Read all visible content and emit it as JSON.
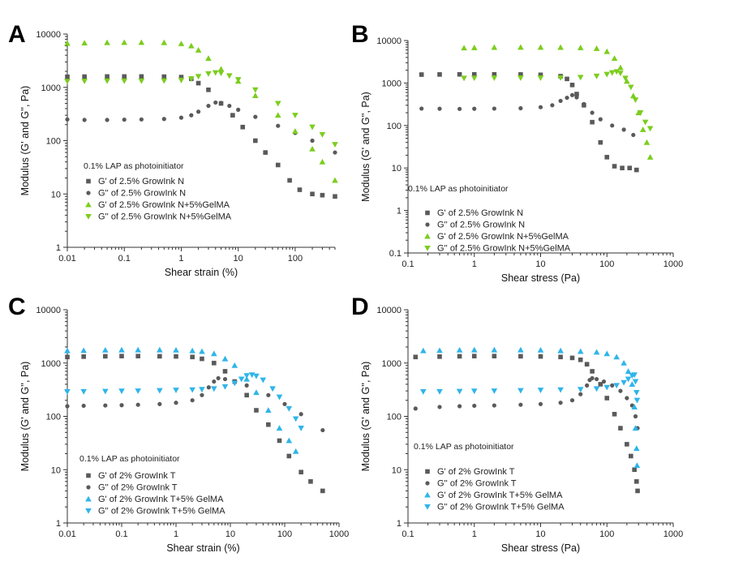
{
  "chart_data": [
    {
      "panel": "A",
      "type": "scatter",
      "xscale": "log",
      "yscale": "log",
      "xlim": [
        0.01,
        500
      ],
      "ylim": [
        1,
        10000
      ],
      "xticks": [
        "0.01",
        "0.1",
        "1",
        "10",
        "100"
      ],
      "yticks": [
        "1",
        "10",
        "100",
        "1000",
        "10000"
      ],
      "xlabel": "Shear strain (%)",
      "ylabel": "Modulus (G' and G'', Pa)",
      "annotation": "0.1% LAP as photoinitiator",
      "series": [
        {
          "name": "G' of 2.5% GrowInk N",
          "marker": "square",
          "color": "#5a5a5a",
          "x": [
            0.01,
            0.02,
            0.05,
            0.1,
            0.2,
            0.5,
            1,
            1.5,
            2,
            3,
            5,
            8,
            12,
            20,
            30,
            50,
            80,
            120,
            200,
            300,
            500
          ],
          "y": [
            1580,
            1590,
            1600,
            1600,
            1600,
            1590,
            1560,
            1450,
            1200,
            900,
            500,
            300,
            180,
            100,
            60,
            35,
            18,
            12,
            10,
            9.5,
            9
          ]
        },
        {
          "name": "G'' of 2.5% GrowInk N",
          "marker": "circle",
          "color": "#5a5a5a",
          "x": [
            0.01,
            0.02,
            0.05,
            0.1,
            0.2,
            0.5,
            1,
            1.5,
            2,
            3,
            4,
            5,
            7,
            10,
            20,
            50,
            100,
            200,
            500
          ],
          "y": [
            250,
            245,
            245,
            248,
            250,
            255,
            270,
            300,
            350,
            450,
            520,
            510,
            450,
            380,
            280,
            190,
            140,
            100,
            60
          ]
        },
        {
          "name": "G' of 2.5% GrowInk N+5%GelMA",
          "marker": "triangle-up",
          "color": "#7ccd1e",
          "x": [
            0.01,
            0.02,
            0.05,
            0.1,
            0.2,
            0.5,
            1,
            1.5,
            2,
            3,
            5,
            10,
            20,
            50,
            100,
            200,
            300,
            500
          ],
          "y": [
            6700,
            6800,
            6900,
            6950,
            6950,
            6900,
            6600,
            6000,
            5000,
            3500,
            2200,
            1300,
            700,
            300,
            150,
            70,
            40,
            18
          ]
        },
        {
          "name": "G'' of 2.5% GrowInk N+5%GelMA",
          "marker": "triangle-down",
          "color": "#7ccd1e",
          "x": [
            0.01,
            0.02,
            0.05,
            0.1,
            0.2,
            0.5,
            1,
            1.5,
            2,
            3,
            4,
            5,
            7,
            10,
            20,
            50,
            100,
            200,
            300,
            500
          ],
          "y": [
            1300,
            1310,
            1320,
            1320,
            1320,
            1330,
            1360,
            1450,
            1600,
            1800,
            1880,
            1850,
            1650,
            1400,
            900,
            500,
            300,
            180,
            130,
            85
          ]
        }
      ]
    },
    {
      "panel": "B",
      "type": "scatter",
      "xscale": "log",
      "yscale": "log",
      "xlim": [
        0.1,
        1000
      ],
      "ylim": [
        0.1,
        10000
      ],
      "xticks": [
        "0.1",
        "1",
        "10",
        "100",
        "1000"
      ],
      "yticks": [
        "0.1",
        "1",
        "10",
        "100",
        "1000",
        "10000"
      ],
      "xlabel": "Shear stress (Pa)",
      "ylabel": "Modulus (G' and G'', Pa)",
      "annotation": "0.1% LAP as photoinitiator",
      "series": [
        {
          "name": "G' of 2.5% GrowInk N",
          "marker": "square",
          "color": "#5a5a5a",
          "x": [
            0.16,
            0.3,
            0.6,
            1,
            2,
            5,
            10,
            20,
            25,
            30,
            35,
            45,
            60,
            80,
            100,
            130,
            170,
            220,
            280
          ],
          "y": [
            1580,
            1590,
            1600,
            1600,
            1600,
            1590,
            1560,
            1450,
            1250,
            900,
            550,
            300,
            120,
            40,
            18,
            11,
            10,
            10,
            9
          ]
        },
        {
          "name": "G'' of 2.5% GrowInk N",
          "marker": "circle",
          "color": "#5a5a5a",
          "x": [
            0.16,
            0.3,
            0.6,
            1,
            2,
            5,
            10,
            15,
            20,
            25,
            30,
            35,
            45,
            60,
            80,
            120,
            180,
            250
          ],
          "y": [
            250,
            248,
            246,
            248,
            250,
            255,
            270,
            300,
            380,
            450,
            520,
            460,
            320,
            200,
            140,
            100,
            80,
            60
          ]
        },
        {
          "name": "G' of 2.5% GrowInk N+5%GelMA",
          "marker": "triangle-up",
          "color": "#7ccd1e",
          "x": [
            0.7,
            1,
            2,
            5,
            10,
            20,
            40,
            70,
            100,
            130,
            160,
            200,
            250,
            300,
            350,
            400,
            450
          ],
          "y": [
            6700,
            6800,
            6900,
            6950,
            6950,
            6900,
            6800,
            6500,
            5500,
            3800,
            2300,
            1100,
            500,
            200,
            80,
            40,
            18
          ]
        },
        {
          "name": "G'' of 2.5% GrowInk N+5%GelMA",
          "marker": "triangle-down",
          "color": "#7ccd1e",
          "x": [
            0.7,
            1,
            2,
            5,
            10,
            20,
            40,
            70,
            100,
            120,
            140,
            160,
            190,
            230,
            270,
            320,
            380,
            450
          ],
          "y": [
            1300,
            1310,
            1320,
            1320,
            1320,
            1330,
            1360,
            1450,
            1600,
            1750,
            1850,
            1700,
            1300,
            800,
            400,
            200,
            120,
            85
          ]
        }
      ]
    },
    {
      "panel": "C",
      "type": "scatter",
      "xscale": "log",
      "yscale": "log",
      "xlim": [
        0.01,
        1000
      ],
      "ylim": [
        1,
        10000
      ],
      "xticks": [
        "0.01",
        "0.1",
        "1",
        "10",
        "100",
        "1000"
      ],
      "yticks": [
        "1",
        "10",
        "100",
        "1000",
        "10000"
      ],
      "xlabel": "Shear strain (%)",
      "ylabel": "Modulus (G' and G'', Pa)",
      "annotation": "0.1% LAP as photoinitiator",
      "series": [
        {
          "name": "G' of 2% GrowInk T",
          "marker": "square",
          "color": "#5a5a5a",
          "x": [
            0.01,
            0.02,
            0.05,
            0.1,
            0.2,
            0.5,
            1,
            2,
            3,
            5,
            8,
            12,
            20,
            30,
            50,
            80,
            120,
            200,
            300,
            500
          ],
          "y": [
            1300,
            1320,
            1340,
            1350,
            1350,
            1340,
            1330,
            1300,
            1200,
            1000,
            700,
            450,
            250,
            130,
            70,
            35,
            18,
            9,
            6,
            4
          ]
        },
        {
          "name": "G'' of 2% GrowInk T",
          "marker": "circle",
          "color": "#5a5a5a",
          "x": [
            0.01,
            0.02,
            0.05,
            0.1,
            0.2,
            0.5,
            1,
            2,
            3,
            4,
            5,
            6,
            8,
            12,
            20,
            50,
            100,
            200,
            500
          ],
          "y": [
            155,
            158,
            160,
            162,
            165,
            170,
            180,
            200,
            250,
            350,
            450,
            520,
            500,
            450,
            380,
            250,
            170,
            110,
            55
          ]
        },
        {
          "name": "G' of 2% GrowInk T+5% GelMA",
          "marker": "triangle-up",
          "color": "#2fb5ea",
          "x": [
            0.01,
            0.02,
            0.05,
            0.1,
            0.2,
            0.5,
            1,
            2,
            3,
            5,
            8,
            12,
            20,
            30,
            50,
            80,
            120,
            160
          ],
          "y": [
            1700,
            1720,
            1750,
            1760,
            1760,
            1760,
            1750,
            1700,
            1650,
            1500,
            1200,
            900,
            500,
            280,
            130,
            60,
            35,
            22
          ]
        },
        {
          "name": "G'' of 2% GrowInk T+5% GelMA",
          "marker": "triangle-down",
          "color": "#2fb5ea",
          "x": [
            0.01,
            0.02,
            0.05,
            0.1,
            0.2,
            0.5,
            1,
            2,
            3,
            5,
            8,
            12,
            16,
            20,
            25,
            30,
            40,
            60,
            80,
            120,
            160,
            200
          ],
          "y": [
            290,
            292,
            295,
            298,
            300,
            305,
            310,
            315,
            320,
            330,
            360,
            420,
            500,
            580,
            600,
            570,
            480,
            330,
            230,
            140,
            90,
            60
          ]
        }
      ]
    },
    {
      "panel": "D",
      "type": "scatter",
      "xscale": "log",
      "yscale": "log",
      "xlim": [
        0.1,
        1000
      ],
      "ylim": [
        1,
        10000
      ],
      "xticks": [
        "0.1",
        "1",
        "10",
        "100",
        "1000"
      ],
      "yticks": [
        "1",
        "10",
        "100",
        "1000",
        "10000"
      ],
      "xlabel": "Shear stress (Pa)",
      "ylabel": "Modulus (G' and G'', Pa)",
      "annotation": "0.1% LAP as photoinitiator",
      "series": [
        {
          "name": "G' of 2% GrowInk T",
          "marker": "square",
          "color": "#5a5a5a",
          "x": [
            0.13,
            0.3,
            0.6,
            1,
            2,
            5,
            10,
            20,
            30,
            40,
            50,
            60,
            80,
            100,
            130,
            160,
            200,
            230,
            260,
            280,
            290
          ],
          "y": [
            1300,
            1320,
            1340,
            1350,
            1350,
            1340,
            1330,
            1300,
            1250,
            1150,
            950,
            700,
            400,
            220,
            110,
            60,
            30,
            18,
            10,
            6,
            4
          ]
        },
        {
          "name": "G'' of 2% GrowInk T",
          "marker": "circle",
          "color": "#5a5a5a",
          "x": [
            0.13,
            0.3,
            0.6,
            1,
            2,
            5,
            10,
            20,
            30,
            40,
            50,
            55,
            60,
            70,
            90,
            120,
            160,
            200,
            240,
            270,
            290
          ],
          "y": [
            140,
            150,
            155,
            158,
            160,
            165,
            170,
            180,
            200,
            260,
            380,
            480,
            520,
            500,
            450,
            380,
            300,
            220,
            160,
            100,
            60
          ]
        },
        {
          "name": "G' of 2% GrowInk T+5% GelMA",
          "marker": "triangle-up",
          "color": "#2fb5ea",
          "x": [
            0.17,
            0.3,
            0.6,
            1,
            2,
            5,
            10,
            20,
            40,
            70,
            100,
            140,
            180,
            210,
            240,
            260,
            270,
            280,
            285
          ],
          "y": [
            1700,
            1720,
            1750,
            1760,
            1760,
            1760,
            1750,
            1700,
            1650,
            1600,
            1500,
            1300,
            1000,
            700,
            400,
            150,
            60,
            25,
            12
          ]
        },
        {
          "name": "G'' of 2% GrowInk T+5% GelMA",
          "marker": "triangle-down",
          "color": "#2fb5ea",
          "x": [
            0.17,
            0.3,
            0.6,
            1,
            2,
            5,
            10,
            20,
            40,
            70,
            100,
            140,
            180,
            210,
            240,
            260,
            270,
            280,
            285
          ],
          "y": [
            290,
            292,
            295,
            298,
            300,
            305,
            310,
            315,
            320,
            330,
            350,
            380,
            430,
            500,
            580,
            600,
            450,
            280,
            200
          ]
        }
      ]
    }
  ]
}
